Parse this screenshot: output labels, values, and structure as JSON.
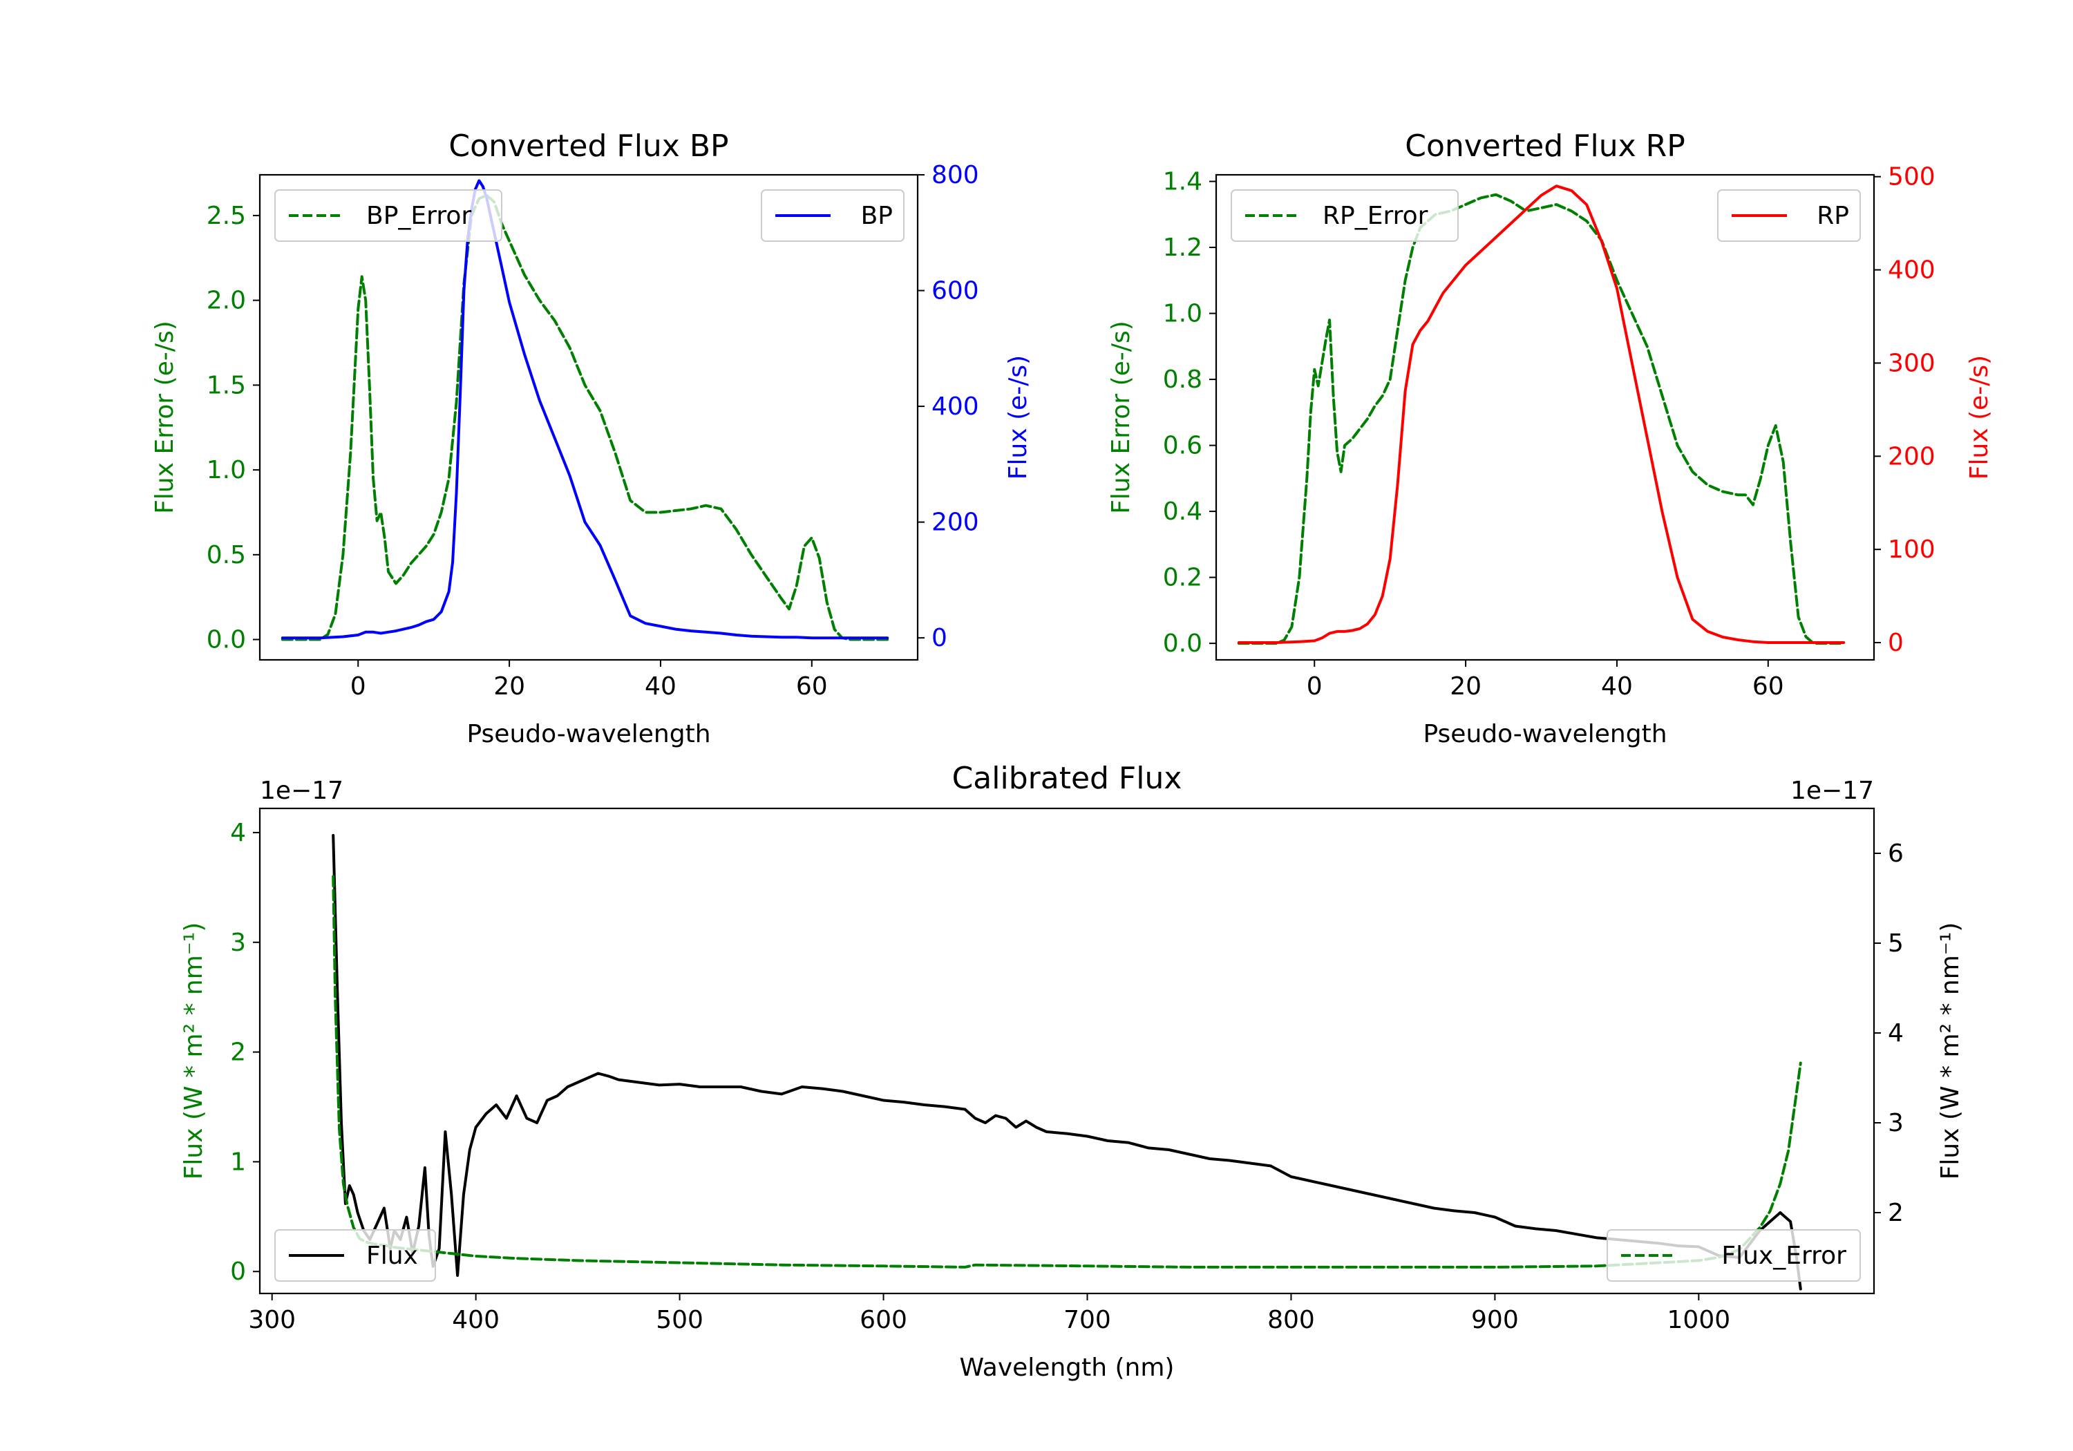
{
  "colors": {
    "bp": "#0000ff",
    "rp": "#ff0000",
    "error": "#008000",
    "flux": "#000000"
  },
  "chart_data": [
    {
      "id": "bp",
      "type": "line",
      "title": "Converted Flux BP",
      "xlabel": "Pseudo-wavelength",
      "ylabel_left": "Flux Error (e-/s)",
      "ylabel_right": "Flux (e-/s)",
      "xlim": [
        -13,
        74
      ],
      "ylim_left": [
        -0.12,
        2.74
      ],
      "ylim_right": [
        -38,
        800
      ],
      "xticks": [
        0,
        20,
        40,
        60
      ],
      "yticks_left": [
        "0.0",
        "0.5",
        "1.0",
        "1.5",
        "2.0",
        "2.5"
      ],
      "yticks_right": [
        "0",
        "200",
        "400",
        "600",
        "800"
      ],
      "legend_left": {
        "label": "BP_Error",
        "position": "upper left"
      },
      "legend_right": {
        "label": "BP",
        "position": "upper right"
      },
      "series": [
        {
          "name": "BP_Error",
          "axis": "left",
          "color": "#008000",
          "style": "dashed",
          "x": [
            -10,
            -5,
            -4,
            -3,
            -2,
            -1,
            0,
            0.5,
            1,
            1.5,
            2,
            2.5,
            3,
            3.5,
            4,
            5,
            6,
            7,
            8,
            9,
            10,
            11,
            12,
            13,
            14,
            15,
            16,
            17,
            18,
            19,
            20,
            22,
            24,
            26,
            28,
            30,
            32,
            34,
            36,
            38,
            40,
            42,
            44,
            46,
            48,
            50,
            52,
            54,
            56,
            57,
            58,
            59,
            60,
            61,
            62,
            63,
            64,
            65,
            70
          ],
          "y": [
            0,
            0,
            0.03,
            0.15,
            0.5,
            1.1,
            1.95,
            2.14,
            2.0,
            1.5,
            0.95,
            0.7,
            0.75,
            0.6,
            0.4,
            0.33,
            0.38,
            0.45,
            0.5,
            0.55,
            0.62,
            0.75,
            0.95,
            1.4,
            2.1,
            2.5,
            2.6,
            2.62,
            2.58,
            2.45,
            2.35,
            2.15,
            2.0,
            1.88,
            1.72,
            1.5,
            1.35,
            1.1,
            0.82,
            0.75,
            0.75,
            0.76,
            0.77,
            0.79,
            0.77,
            0.65,
            0.5,
            0.37,
            0.24,
            0.18,
            0.32,
            0.55,
            0.6,
            0.48,
            0.22,
            0.06,
            0.01,
            0,
            0
          ]
        },
        {
          "name": "BP",
          "axis": "right",
          "color": "#0000ff",
          "style": "solid",
          "x": [
            -10,
            -5,
            -2,
            0,
            1,
            2,
            3,
            4,
            5,
            6,
            7,
            8,
            9,
            10,
            11,
            12,
            12.5,
            13,
            13.5,
            14,
            14.5,
            15,
            15.5,
            16,
            16.5,
            17,
            17.5,
            18,
            19,
            20,
            22,
            24,
            26,
            28,
            30,
            32,
            34,
            36,
            38,
            40,
            42,
            44,
            46,
            48,
            50,
            52,
            54,
            56,
            58,
            60,
            62,
            64,
            66,
            70
          ],
          "x_note": "pseudo-wavelength",
          "y": [
            0,
            0,
            2,
            5,
            10,
            10,
            8,
            10,
            12,
            15,
            18,
            22,
            28,
            32,
            45,
            80,
            130,
            250,
            420,
            600,
            690,
            740,
            775,
            790,
            780,
            760,
            730,
            700,
            640,
            580,
            490,
            410,
            345,
            280,
            200,
            160,
            100,
            38,
            25,
            20,
            15,
            12,
            10,
            8,
            5,
            3,
            2,
            1,
            1,
            0,
            0,
            0,
            0,
            0
          ]
        }
      ]
    },
    {
      "id": "rp",
      "type": "line",
      "title": "Converted Flux RP",
      "xlabel": "Pseudo-wavelength",
      "ylabel_left": "Flux Error (e-/s)",
      "ylabel_right": "Flux (e-/s)",
      "xlim": [
        -13,
        74
      ],
      "ylim_left": [
        -0.05,
        1.42
      ],
      "ylim_right": [
        -18.5,
        502
      ],
      "xticks": [
        0,
        20,
        40,
        60
      ],
      "yticks_left": [
        "0.0",
        "0.2",
        "0.4",
        "0.6",
        "0.8",
        "1.0",
        "1.2",
        "1.4"
      ],
      "yticks_right": [
        "0",
        "100",
        "200",
        "300",
        "400",
        "500"
      ],
      "legend_left": {
        "label": "RP_Error",
        "position": "upper left"
      },
      "legend_right": {
        "label": "RP",
        "position": "upper right"
      },
      "series": [
        {
          "name": "RP_Error",
          "axis": "left",
          "color": "#008000",
          "style": "dashed",
          "x": [
            -10,
            -5,
            -4,
            -3,
            -2,
            -1,
            -0.5,
            0,
            0.5,
            1,
            1.5,
            2,
            2.5,
            3,
            3.5,
            4,
            5,
            6,
            7,
            8,
            9,
            10,
            11,
            12,
            13,
            14,
            15,
            16,
            18,
            20,
            22,
            24,
            26,
            28,
            30,
            32,
            34,
            36,
            38,
            40,
            42,
            44,
            46,
            48,
            50,
            52,
            54,
            56,
            57,
            58,
            59,
            60,
            61,
            62,
            63,
            64,
            65,
            66,
            70
          ],
          "y": [
            0,
            0,
            0.01,
            0.05,
            0.2,
            0.5,
            0.7,
            0.83,
            0.78,
            0.85,
            0.92,
            0.98,
            0.75,
            0.58,
            0.52,
            0.6,
            0.62,
            0.65,
            0.68,
            0.72,
            0.75,
            0.8,
            0.95,
            1.1,
            1.2,
            1.26,
            1.28,
            1.3,
            1.31,
            1.33,
            1.35,
            1.36,
            1.34,
            1.31,
            1.32,
            1.33,
            1.31,
            1.28,
            1.22,
            1.1,
            1.0,
            0.9,
            0.75,
            0.6,
            0.52,
            0.48,
            0.46,
            0.45,
            0.45,
            0.42,
            0.5,
            0.6,
            0.66,
            0.55,
            0.3,
            0.08,
            0.02,
            0,
            0
          ]
        },
        {
          "name": "RP",
          "axis": "right",
          "color": "#ff0000",
          "style": "solid",
          "x": [
            -10,
            -5,
            -2,
            0,
            1,
            2,
            3,
            4,
            5,
            6,
            7,
            8,
            9,
            10,
            11,
            12,
            13,
            14,
            15,
            16,
            17,
            18,
            20,
            22,
            24,
            26,
            28,
            30,
            32,
            34,
            36,
            38,
            40,
            42,
            44,
            46,
            48,
            50,
            52,
            54,
            56,
            58,
            60,
            62,
            64,
            66,
            70
          ],
          "y": [
            0,
            0,
            1,
            2,
            5,
            10,
            12,
            12,
            13,
            15,
            20,
            30,
            50,
            90,
            170,
            270,
            320,
            335,
            345,
            360,
            375,
            385,
            405,
            420,
            435,
            450,
            465,
            480,
            490,
            485,
            470,
            430,
            380,
            300,
            220,
            140,
            70,
            25,
            12,
            6,
            3,
            1,
            0,
            0,
            0,
            0,
            0
          ]
        }
      ]
    },
    {
      "id": "calibrated",
      "type": "line",
      "title": "Calibrated Flux",
      "xlabel": "Wavelength (nm)",
      "ylabel_left": "Flux (W * m² * nm⁻¹)",
      "ylabel_right": "Flux (W * m² * nm⁻¹)",
      "offset_left": "1e−17",
      "offset_right": "1e−17",
      "xlim": [
        294,
        1086
      ],
      "ylim_left": [
        -0.2,
        4.22
      ],
      "ylim_right": [
        1.1,
        6.5
      ],
      "xticks": [
        "300",
        "400",
        "500",
        "600",
        "700",
        "800",
        "900",
        "1000"
      ],
      "yticks_left": [
        "0",
        "1",
        "2",
        "3",
        "4"
      ],
      "yticks_right": [
        "2",
        "3",
        "4",
        "5",
        "6"
      ],
      "legend_left": {
        "label": "Flux",
        "position": "lower left"
      },
      "legend_right": {
        "label": "Flux_Error",
        "position": "lower right"
      },
      "series": [
        {
          "name": "Flux",
          "axis": "right",
          "color": "#000000",
          "style": "solid",
          "x": [
            330,
            332,
            334,
            336,
            338,
            340,
            342,
            345,
            348,
            350,
            352,
            355,
            358,
            360,
            363,
            366,
            369,
            372,
            375,
            377,
            379,
            382,
            385,
            388,
            391,
            394,
            397,
            400,
            405,
            410,
            415,
            420,
            425,
            430,
            435,
            440,
            445,
            450,
            455,
            460,
            465,
            470,
            480,
            490,
            500,
            510,
            520,
            530,
            540,
            550,
            560,
            570,
            580,
            590,
            600,
            610,
            620,
            630,
            640,
            645,
            650,
            655,
            660,
            665,
            670,
            675,
            680,
            690,
            700,
            710,
            720,
            730,
            740,
            750,
            760,
            770,
            780,
            790,
            800,
            810,
            820,
            830,
            840,
            850,
            860,
            870,
            880,
            890,
            900,
            910,
            920,
            930,
            940,
            950,
            960,
            970,
            980,
            990,
            1000,
            1010,
            1020,
            1030,
            1040,
            1045,
            1048,
            1050
          ],
          "y": [
            6.2,
            4.5,
            3.0,
            2.1,
            2.3,
            2.2,
            2.0,
            1.8,
            1.7,
            1.8,
            1.9,
            2.05,
            1.6,
            1.8,
            1.7,
            1.95,
            1.55,
            1.85,
            2.5,
            1.75,
            1.4,
            1.6,
            2.9,
            2.2,
            1.3,
            2.2,
            2.7,
            2.95,
            3.1,
            3.2,
            3.05,
            3.3,
            3.05,
            3.0,
            3.25,
            3.3,
            3.4,
            3.45,
            3.5,
            3.55,
            3.52,
            3.48,
            3.45,
            3.42,
            3.43,
            3.4,
            3.4,
            3.4,
            3.35,
            3.32,
            3.4,
            3.38,
            3.35,
            3.3,
            3.25,
            3.23,
            3.2,
            3.18,
            3.15,
            3.05,
            3.0,
            3.08,
            3.05,
            2.95,
            3.02,
            2.95,
            2.9,
            2.88,
            2.85,
            2.8,
            2.78,
            2.72,
            2.7,
            2.65,
            2.6,
            2.58,
            2.55,
            2.52,
            2.4,
            2.35,
            2.3,
            2.25,
            2.2,
            2.15,
            2.1,
            2.05,
            2.02,
            2.0,
            1.95,
            1.85,
            1.82,
            1.8,
            1.76,
            1.72,
            1.7,
            1.68,
            1.66,
            1.63,
            1.62,
            1.52,
            1.5,
            1.8,
            2.0,
            1.9,
            1.5,
            1.15
          ]
        },
        {
          "name": "Flux_Error",
          "axis": "left",
          "color": "#008000",
          "style": "dashed",
          "x": [
            330,
            331,
            333,
            335,
            337,
            340,
            343,
            346,
            350,
            355,
            360,
            370,
            380,
            390,
            400,
            420,
            450,
            500,
            550,
            600,
            640,
            645,
            700,
            750,
            800,
            850,
            900,
            950,
            1000,
            1010,
            1020,
            1025,
            1030,
            1035,
            1040,
            1044,
            1047,
            1050
          ],
          "y": [
            3.6,
            2.5,
            1.3,
            0.8,
            0.6,
            0.4,
            0.3,
            0.27,
            0.25,
            0.24,
            0.22,
            0.2,
            0.18,
            0.16,
            0.14,
            0.12,
            0.1,
            0.08,
            0.06,
            0.05,
            0.04,
            0.06,
            0.05,
            0.04,
            0.04,
            0.04,
            0.04,
            0.05,
            0.1,
            0.13,
            0.2,
            0.3,
            0.4,
            0.55,
            0.8,
            1.1,
            1.5,
            1.9
          ]
        }
      ]
    }
  ]
}
